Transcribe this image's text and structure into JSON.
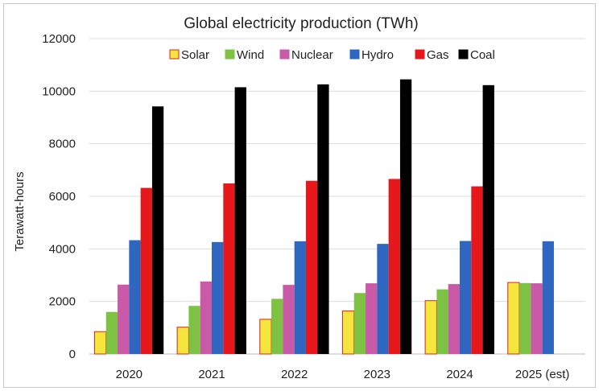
{
  "chart_data": {
    "type": "bar",
    "title": "Global electricity production (TWh)",
    "xlabel": "",
    "ylabel": "Terawatt-hours",
    "ylim": [
      0,
      12000
    ],
    "yticks": [
      0,
      2000,
      4000,
      6000,
      8000,
      10000,
      12000
    ],
    "ytick_labels": [
      "0",
      "2000",
      "4000",
      "6000",
      "8000",
      "10000",
      "12000"
    ],
    "grid": true,
    "legend_position": "top",
    "categories": [
      "2020",
      "2021",
      "2022",
      "2023",
      "2024",
      "2025 (est)"
    ],
    "series": [
      {
        "name": "Solar",
        "color": "#f4e63c",
        "edge": "#e02020",
        "values": [
          850,
          1020,
          1320,
          1640,
          2030,
          2720
        ]
      },
      {
        "name": "Wind",
        "color": "#7dc242",
        "edge": "#7dc242",
        "values": [
          1600,
          1830,
          2100,
          2320,
          2460,
          2700
        ]
      },
      {
        "name": "Nuclear",
        "color": "#c95aa8",
        "edge": "#c95aa8",
        "values": [
          2640,
          2760,
          2630,
          2690,
          2660,
          2690
        ]
      },
      {
        "name": "Hydro",
        "color": "#2f66c0",
        "edge": "#2f66c0",
        "values": [
          4330,
          4260,
          4290,
          4190,
          4300,
          4290
        ]
      },
      {
        "name": "Gas",
        "color": "#e6181b",
        "edge": "#e6181b",
        "values": [
          6320,
          6490,
          6590,
          6660,
          6380,
          null
        ]
      },
      {
        "name": "Coal",
        "color": "#000000",
        "edge": "#000000",
        "values": [
          9420,
          10150,
          10260,
          10450,
          10230,
          null
        ]
      }
    ]
  }
}
